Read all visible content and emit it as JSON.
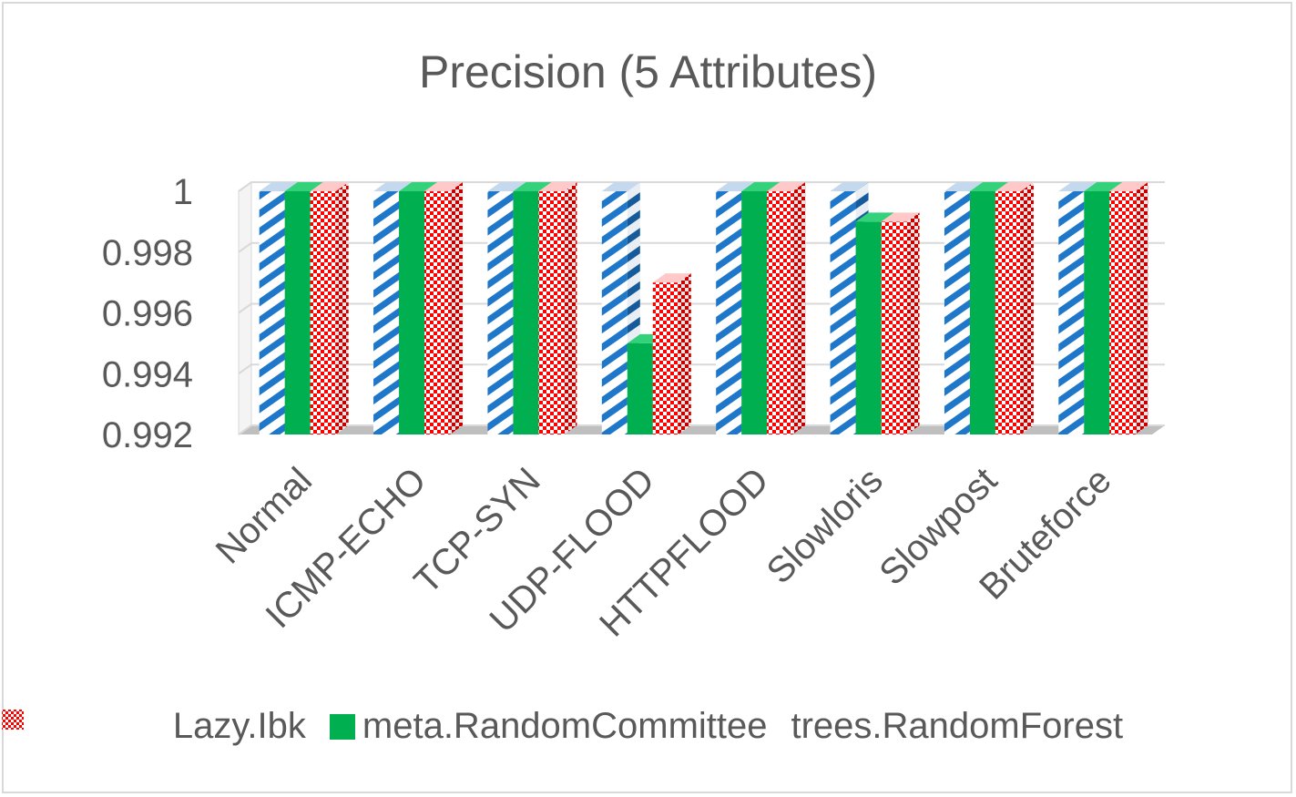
{
  "chart_data": {
    "type": "bar",
    "title": "Precision (5 Attributes)",
    "categories": [
      "Normal",
      "ICMP-ECHO",
      "TCP-SYN",
      "UDP-FLOOD",
      "HTTPFLOOD",
      "Slowloris",
      "Slowpost",
      "Bruteforce"
    ],
    "series": [
      {
        "name": "Lazy.Ibk",
        "values": [
          1,
          1,
          1,
          1,
          1,
          1,
          1,
          1
        ],
        "color": "#1f77c9",
        "pattern": "diagonal-stripes"
      },
      {
        "name": "meta.RandomCommittee",
        "values": [
          1,
          1,
          1,
          0.995,
          1,
          0.999,
          1,
          1
        ],
        "color": "#00b050",
        "pattern": "solid"
      },
      {
        "name": "trees.RandomForest",
        "values": [
          1,
          1,
          1,
          0.997,
          1,
          0.999,
          1,
          1
        ],
        "color": "#ff0000",
        "pattern": "checker"
      }
    ],
    "yticks": [
      "0.992",
      "0.994",
      "0.996",
      "0.998",
      "1"
    ],
    "ylim": [
      0.992,
      1.0
    ],
    "grid": true,
    "legend_position": "bottom",
    "style": "3d-clustered-column"
  }
}
